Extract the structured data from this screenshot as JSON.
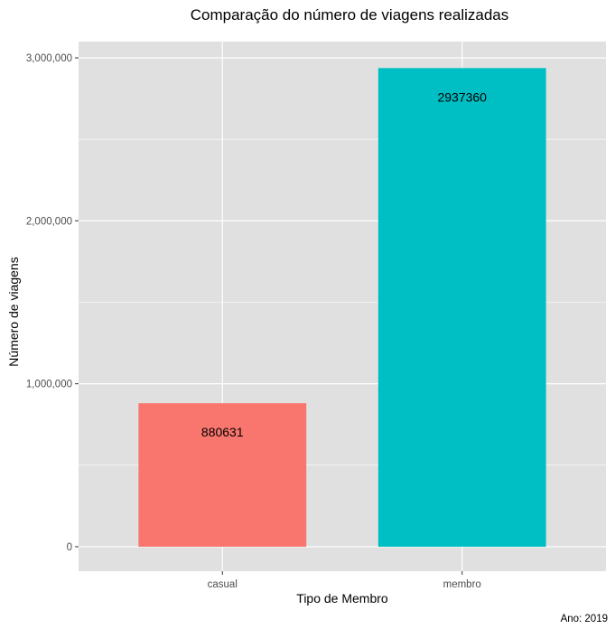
{
  "chart_data": {
    "type": "bar",
    "title": "Comparação do número de viagens realizadas",
    "xlabel": "Tipo de Membro",
    "ylabel": "Número de viagens",
    "caption": "Ano: 2019",
    "categories": [
      "casual",
      "membro"
    ],
    "values": [
      880631,
      2937360
    ],
    "data_labels": [
      "880631",
      "2937360"
    ],
    "colors": [
      "#F8766D",
      "#00BFC4"
    ],
    "ylim": [
      -150000,
      3100000
    ],
    "yticks": [
      0,
      1000000,
      2000000,
      3000000
    ],
    "ytick_labels": [
      "0",
      "1,000,000",
      "2,000,000",
      "3,000,000"
    ],
    "grid": true,
    "panel_background": "#E0E0E0",
    "grid_color": "#FFFFFF",
    "legend": "none"
  }
}
